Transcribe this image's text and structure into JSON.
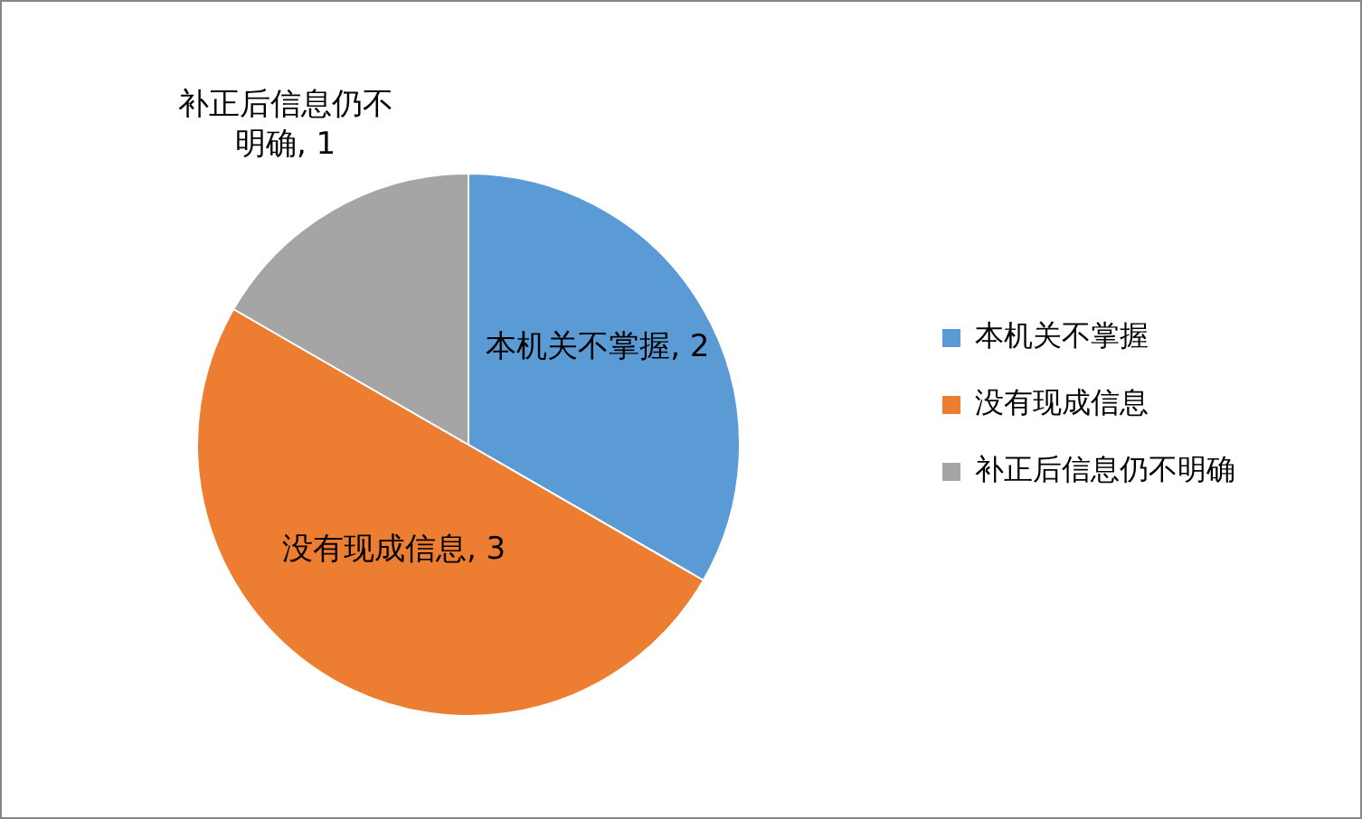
{
  "chart_data": {
    "type": "pie",
    "categories": [
      "本机关不掌握",
      "没有现成信息",
      "补正后信息仍不明确"
    ],
    "values": [
      2,
      3,
      1
    ],
    "value_labels": [
      ", 2",
      ", 3",
      ", 1"
    ],
    "colors": [
      "#5b9bd5",
      "#ed7d31",
      "#a5a5a5"
    ],
    "legend": "right"
  }
}
